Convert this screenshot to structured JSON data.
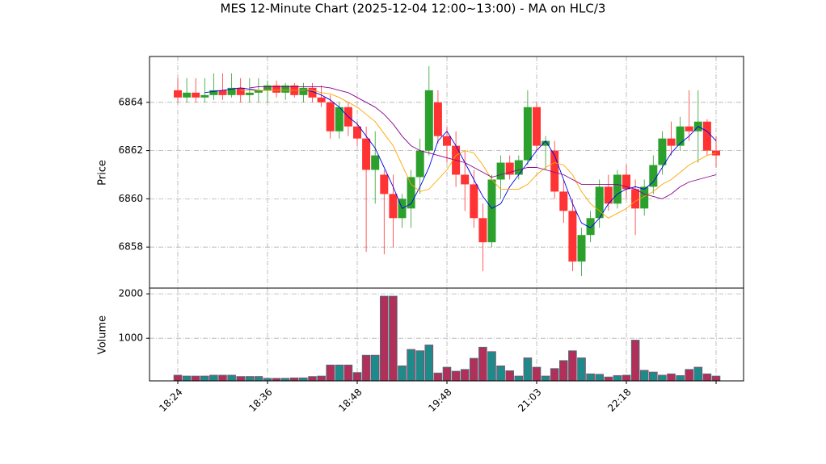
{
  "chart_data": [
    {
      "type": "candlestick",
      "title": "MES 12-Minute Chart (2025-12-04 12:00~13:00) - MA on HLC/3",
      "ylabel": "Price",
      "categories": [
        "18:24",
        null,
        null,
        null,
        null,
        null,
        null,
        null,
        null,
        null,
        "18:36",
        null,
        null,
        null,
        null,
        null,
        null,
        null,
        null,
        null,
        "18:48",
        null,
        null,
        null,
        null,
        null,
        null,
        null,
        null,
        null,
        "19:48",
        null,
        null,
        null,
        null,
        null,
        null,
        null,
        null,
        null,
        "21:03",
        null,
        null,
        null,
        null,
        null,
        null,
        null,
        null,
        null,
        "22:18",
        null,
        null,
        null,
        null,
        null,
        null,
        null,
        null,
        null,
        null
      ],
      "open": [
        6864.5,
        6864.2,
        6864.4,
        6864.2,
        6864.3,
        6864.5,
        6864.3,
        6864.6,
        6864.3,
        6864.4,
        6864.5,
        6864.7,
        6864.4,
        6864.7,
        6864.3,
        6864.6,
        6864.2,
        6864,
        6862.8,
        6863.8,
        6863,
        6862.5,
        6861.2,
        6861,
        6860.2,
        6859.2,
        6859.6,
        6860.9,
        6862,
        6864,
        6862.6,
        6862.2,
        6861,
        6860.6,
        6859.2,
        6858.2,
        6860.8,
        6861.5,
        6861,
        6861.6,
        6863.8,
        6862.2,
        6862,
        6860.3,
        6859.5,
        6857.4,
        6858.5,
        6859.2,
        6860.5,
        6859.8,
        6861,
        6860.4,
        6859.6,
        6860.5,
        6861.4,
        6862.5,
        6862.2,
        6863,
        6862.8,
        6863.2,
        6862
      ],
      "high": [
        6865,
        6865,
        6865,
        6865,
        6865.2,
        6865.2,
        6865.2,
        6865,
        6865,
        6865,
        6864.9,
        6864.9,
        6864.8,
        6864.8,
        6864.8,
        6864.8,
        6864.7,
        6864.3,
        6864,
        6864,
        6863.2,
        6863,
        6862.8,
        6861.2,
        6861,
        6860.2,
        6861.2,
        6862.5,
        6865.5,
        6864.5,
        6863,
        6862.8,
        6862,
        6861.2,
        6859.8,
        6861,
        6861.8,
        6861.8,
        6861.8,
        6864.5,
        6864,
        6862.6,
        6862.4,
        6860.8,
        6860,
        6858.8,
        6859.5,
        6860.8,
        6861,
        6861.2,
        6861.4,
        6860.8,
        6860.8,
        6861.8,
        6862.8,
        6863.2,
        6863.4,
        6864.5,
        6864.5,
        6863.3,
        6862.6
      ],
      "low": [
        6864,
        6864,
        6864,
        6864,
        6864.1,
        6864.1,
        6864.2,
        6864,
        6864,
        6864,
        6864,
        6864.2,
        6864.1,
        6864.2,
        6864,
        6864,
        6863.8,
        6862.5,
        6862.5,
        6862.6,
        6862.2,
        6857.8,
        6859.8,
        6857.7,
        6858,
        6858.8,
        6858.8,
        6860.2,
        6861.8,
        6862.3,
        6861.5,
        6860.5,
        6859.5,
        6858.8,
        6857,
        6858,
        6860,
        6860.8,
        6860.8,
        6861.4,
        6862,
        6861.2,
        6860,
        6859,
        6857,
        6856.8,
        6858.2,
        6858.8,
        6859.5,
        6859.6,
        6860,
        6858.5,
        6859.3,
        6860.2,
        6861,
        6861.8,
        6862,
        6862.4,
        6861.5,
        6861.8,
        6861.3
      ],
      "close": [
        6864.2,
        6864.4,
        6864.2,
        6864.3,
        6864.5,
        6864.3,
        6864.6,
        6864.3,
        6864.4,
        6864.5,
        6864.7,
        6864.4,
        6864.7,
        6864.3,
        6864.6,
        6864.2,
        6864,
        6862.8,
        6863.8,
        6863,
        6862.5,
        6861.2,
        6861.8,
        6860.2,
        6859.2,
        6860,
        6860.9,
        6862,
        6864.5,
        6862.6,
        6862.2,
        6861,
        6860.6,
        6859.2,
        6858.2,
        6860.8,
        6861.5,
        6861,
        6861.6,
        6863.8,
        6862.2,
        6862.4,
        6860.3,
        6859.5,
        6857.4,
        6858.5,
        6859.2,
        6860.5,
        6859.8,
        6861,
        6860.4,
        6859.6,
        6860.5,
        6861.4,
        6862.5,
        6862.2,
        6863,
        6862.8,
        6863.2,
        6862,
        6861.8
      ],
      "up_color": "#2ca02c",
      "down_color": "#ff3333",
      "series": [
        {
          "name": "MA short",
          "color": "#0000ee",
          "values": [
            null,
            null,
            null,
            6864.4,
            6864.45,
            6864.5,
            6864.55,
            6864.6,
            6864.55,
            6864.5,
            6864.5,
            6864.5,
            6864.5,
            6864.5,
            6864.5,
            6864.45,
            6864.3,
            6864.1,
            6863.8,
            6863.4,
            6863.1,
            6862.6,
            6862.1,
            6861.3,
            6860.5,
            6859.6,
            6859.8,
            6860.5,
            6861.3,
            6862.4,
            6862.8,
            6862.2,
            6861.5,
            6860.8,
            6860.1,
            6859.6,
            6859.8,
            6860.5,
            6861,
            6861.5,
            6862,
            6862.4,
            6861.8,
            6860.8,
            6859.8,
            6859,
            6858.8,
            6859.2,
            6859.8,
            6860.2,
            6860.4,
            6860.5,
            6860.4,
            6860.7,
            6861.3,
            6861.9,
            6862.3,
            6862.6,
            6863,
            6862.8,
            6862.4
          ]
        },
        {
          "name": "MA mid",
          "color": "#ffa500",
          "values": [
            null,
            null,
            null,
            null,
            null,
            null,
            null,
            6864.5,
            6864.5,
            6864.5,
            6864.5,
            6864.5,
            6864.5,
            6864.5,
            6864.5,
            6864.5,
            6864.4,
            6864.35,
            6864.2,
            6864,
            6863.8,
            6863.5,
            6863.2,
            6862.7,
            6862.2,
            6861.4,
            6860.6,
            6860.3,
            6860.4,
            6860.8,
            6861.2,
            6861.8,
            6862,
            6861.9,
            6861.4,
            6860.8,
            6860.4,
            6860.4,
            6860.4,
            6860.6,
            6861,
            6861.3,
            6861.5,
            6861.4,
            6861,
            6860.3,
            6859.8,
            6859.5,
            6859.2,
            6859.4,
            6859.6,
            6859.9,
            6860.1,
            6860.3,
            6860.6,
            6860.8,
            6861.1,
            6861.4,
            6861.6,
            6861.8,
            6861.9
          ]
        },
        {
          "name": "MA long",
          "color": "#8b008b",
          "values": [
            null,
            null,
            null,
            null,
            null,
            null,
            null,
            null,
            6864.6,
            6864.65,
            6864.65,
            6864.65,
            6864.65,
            6864.65,
            6864.65,
            6864.65,
            6864.65,
            6864.6,
            6864.5,
            6864.4,
            6864.2,
            6864,
            6863.8,
            6863.5,
            6863.1,
            6862.6,
            6862.2,
            6862,
            6861.9,
            6861.8,
            6861.7,
            6861.6,
            6861.5,
            6861.3,
            6861.1,
            6860.9,
            6861,
            6861.1,
            6861.2,
            6861.3,
            6861.3,
            6861.2,
            6861.1,
            6861,
            6860.8,
            6860.6,
            6860.6,
            6860.6,
            6860.6,
            6860.6,
            6860.5,
            6860.4,
            6860.2,
            6860.1,
            6860,
            6860.2,
            6860.5,
            6860.7,
            6860.8,
            6860.9,
            6861
          ]
        }
      ],
      "ylim": [
        6856.3,
        6865.9
      ],
      "yticks": [
        6858,
        6860,
        6862,
        6864
      ],
      "grid": true
    },
    {
      "type": "bar",
      "ylabel": "Volume",
      "values": [
        170,
        150,
        150,
        150,
        170,
        170,
        170,
        140,
        140,
        140,
        100,
        100,
        100,
        110,
        110,
        140,
        150,
        400,
        400,
        400,
        230,
        620,
        620,
        1950,
        1950,
        380,
        750,
        720,
        850,
        220,
        350,
        260,
        300,
        550,
        800,
        700,
        380,
        270,
        150,
        560,
        350,
        150,
        320,
        500,
        720,
        560,
        200,
        190,
        130,
        160,
        170,
        960,
        280,
        240,
        170,
        200,
        160,
        300,
        350,
        200,
        150
      ],
      "up_color": "#1f8a8a",
      "down_color": "#b0305a",
      "ylim": [
        40,
        2130
      ],
      "yticks": [
        1000,
        2000
      ],
      "grid": true
    }
  ]
}
